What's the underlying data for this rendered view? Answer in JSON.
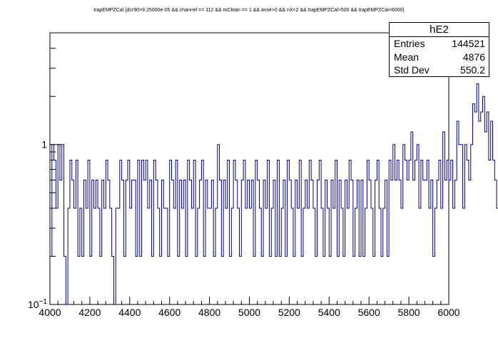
{
  "title": "trapEMPZCal {dcr90>9.25000e-05 && channel == 112 && mClean == 1 && avse>0 && nX<2 && trapEMPZCal>500 && trapEMPZCal<6000}",
  "stats": {
    "name": "hE2",
    "entries_label": "Entries",
    "entries_value": "144521",
    "mean_label": "Mean",
    "mean_value": "4876",
    "stddev_label": "Std Dev",
    "stddev_value": "550.2"
  },
  "colors": {
    "line": "#000080",
    "axis": "#000000"
  },
  "chart_data": {
    "type": "line",
    "title": "trapEMPZCal {dcr90>9.25000e-05 && channel == 112 && mClean == 1 && avse>0 && nX<2 && trapEMPZCal>500 && trapEMPZCal<6000}",
    "xlabel": "",
    "ylabel": "",
    "xlim": [
      4000,
      6000
    ],
    "ylim": [
      0.1,
      5
    ],
    "yscale": "log",
    "grid": false,
    "legend": "none",
    "bin_width": 10,
    "xticks": [
      4000,
      4200,
      4400,
      4600,
      4800,
      5000,
      5200,
      5400,
      5600,
      5800,
      6000
    ],
    "xtick_labels": [
      "4000",
      "4200",
      "4400",
      "4600",
      "4800",
      "5000",
      "5200",
      "5400",
      "5600",
      "5800",
      "6000"
    ],
    "ytick_labels": [
      {
        "value": 1,
        "label": "1"
      },
      {
        "value": 0.1,
        "label": "10",
        "sup": "−1"
      }
    ],
    "series": [
      {
        "values": [
          0.2,
          1,
          0.8,
          0.4,
          1,
          0.6,
          1,
          0.2,
          0.1,
          0.4,
          0.8,
          0.6,
          0.4,
          0.8,
          0.2,
          0.4,
          0.2,
          0.6,
          0.4,
          0.8,
          0.2,
          0.6,
          0.4,
          0.6,
          0.4,
          0.2,
          0.6,
          0.4,
          0.8,
          0.6,
          0.4,
          0.2,
          0.1,
          0.4,
          0.4,
          0.8,
          0.6,
          0.2,
          0.6,
          0.8,
          0.4,
          0.6,
          0.6,
          0.2,
          0.8,
          0.2,
          0.8,
          0.6,
          0.8,
          0.4,
          0.6,
          0.2,
          0.8,
          0.6,
          0.4,
          0.2,
          0.6,
          0.4,
          0.4,
          0.2,
          0.8,
          0.6,
          0.4,
          0.8,
          0.2,
          0.6,
          0.4,
          0.6,
          0.2,
          0.8,
          0.6,
          0.4,
          0.8,
          0.2,
          0.4,
          0.6,
          0.8,
          0.2,
          0.6,
          0.4,
          0.4,
          0.6,
          0.2,
          0.4,
          1,
          0.6,
          0.2,
          0.6,
          0.4,
          0.8,
          0.2,
          0.4,
          0.8,
          0.6,
          0.4,
          0.2,
          0.6,
          0.8,
          0.4,
          0.6,
          0.4,
          0.6,
          0.2,
          0.8,
          0.6,
          0.4,
          0.2,
          0.6,
          0.4,
          0.8,
          0.2,
          0.4,
          0.6,
          0.2,
          0.8,
          0.2,
          0.4,
          0.6,
          0.2,
          0.8,
          0.6,
          0.4,
          0.2,
          0.6,
          0.4,
          0.8,
          0.2,
          0.4,
          0.6,
          0.4,
          0.8,
          0.6,
          0.4,
          0.2,
          0.6,
          0.8,
          0.4,
          0.2,
          0.6,
          0.4,
          0.2,
          0.6,
          0.4,
          0.8,
          0.2,
          0.6,
          0.4,
          0.2,
          0.6,
          0.4,
          0.8,
          0.6,
          0.2,
          0.4,
          0.6,
          0.2,
          0.6,
          0.2,
          0.4,
          0.8,
          0.6,
          0.4,
          0.2,
          0.6,
          0.8,
          0.4,
          0.2,
          0.4,
          0.6,
          0.2,
          0.8,
          0.6,
          1,
          0.6,
          0.8,
          0.6,
          0.4,
          1,
          0.8,
          0.6,
          0.8,
          1.2,
          0.6,
          0.8,
          1,
          0.4,
          0.8,
          0.6,
          0.6,
          0.8,
          0.4,
          0.6,
          0.2,
          0.4,
          0.6,
          0.8,
          0.4,
          1.2,
          0.6,
          0.8,
          0.6,
          0.8,
          0.4,
          0.6,
          1.4,
          1,
          1,
          0.4,
          1,
          0.8,
          0.6,
          1,
          1.8,
          1.6,
          2.4,
          1.4,
          1.6,
          2,
          1.2,
          1.6,
          0.8,
          1.4,
          0.8,
          0.6,
          0.4,
          0.4,
          0.2,
          0.1,
          0.2,
          0.6,
          0.4,
          0.2,
          0.8,
          0.4,
          0.2,
          0.4,
          0.2,
          0.4,
          0.6,
          0.4,
          0.2,
          0.4,
          0.6,
          0.2,
          0.4,
          0.2,
          0.6,
          0.4,
          0.2,
          0.4,
          0.6,
          0.2,
          0.4,
          0.8,
          0.2,
          0.4,
          0.2,
          0.6,
          0.2,
          0.4,
          0.6,
          0.2,
          0.4,
          0.2,
          0.4,
          0.6,
          0.2,
          0.4,
          0.2,
          0.6,
          0.4,
          0.2,
          0.4,
          0.6,
          0.2,
          0.2,
          0.4,
          0.2,
          0.4,
          0.6,
          0.2,
          0.4,
          0.2,
          0.2,
          0.4,
          0.6,
          0.2,
          0.4,
          0.2,
          0.2,
          0.2,
          0.4,
          0.2,
          0.2,
          0.2,
          0.2,
          0.2,
          0.4,
          0.6,
          0.2,
          0.2,
          0.4,
          0.2,
          0.2,
          0.2,
          0.2,
          0.2,
          0.4,
          0.2,
          0.4,
          0.2,
          0.6,
          0.2,
          0.2,
          0.4,
          0.2,
          0.2,
          0.2,
          0.4,
          0.4,
          0.2,
          0.2,
          0.2,
          0.4,
          0.2,
          0.2,
          0.2,
          0.6,
          0.2,
          0.2,
          0.2,
          0.4,
          0.4,
          0.2,
          0.2,
          0.2,
          0.2,
          0.2,
          0.4,
          0.2
        ]
      }
    ]
  }
}
